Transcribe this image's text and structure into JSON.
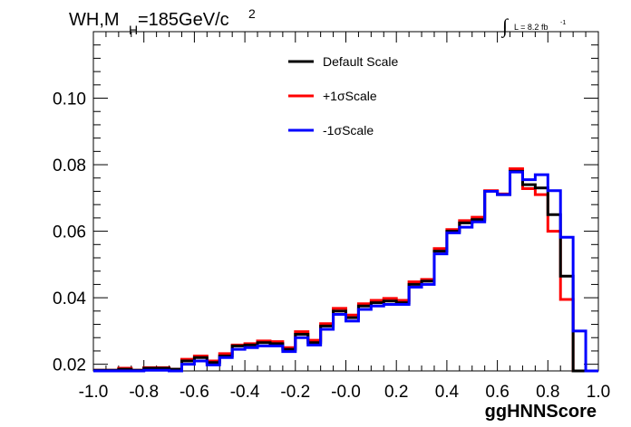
{
  "chart_data": {
    "type": "line",
    "title": "WH,M",
    "title_subscript": "H",
    "title_mass": "=185GeV/c",
    "title_superscript": "2",
    "lumi": {
      "integral_symbol": "∫",
      "text": "L = 8.2 fb",
      "superscript": "-1"
    },
    "xlabel": "ggHNNScore",
    "ylabel": "",
    "xlim": [
      -1.0,
      1.0
    ],
    "ylim": [
      0.018,
      0.12
    ],
    "x_ticks": [
      -1.0,
      -0.8,
      -0.6,
      -0.4,
      -0.2,
      0.0,
      0.2,
      0.4,
      0.6,
      0.8,
      1.0
    ],
    "x_tick_labels": [
      "-1.0",
      "-0.8",
      "-0.6",
      "-0.4",
      "-0.2",
      "-0.0",
      "0.2",
      "0.4",
      "0.6",
      "0.8",
      "1.0"
    ],
    "y_ticks": [
      0.02,
      0.04,
      0.06,
      0.08,
      0.1
    ],
    "y_tick_labels": [
      "0.02",
      "0.04",
      "0.06",
      "0.08",
      "0.10"
    ],
    "grid": false,
    "legend_position": "top-center",
    "bin_edges": [
      -1.0,
      -0.95,
      -0.9,
      -0.85,
      -0.8,
      -0.75,
      -0.7,
      -0.65,
      -0.6,
      -0.55,
      -0.5,
      -0.45,
      -0.4,
      -0.35,
      -0.3,
      -0.25,
      -0.2,
      -0.15,
      -0.1,
      -0.05,
      0.0,
      0.05,
      0.1,
      0.15,
      0.2,
      0.25,
      0.3,
      0.35,
      0.4,
      0.45,
      0.5,
      0.55,
      0.6,
      0.65,
      0.7,
      0.75,
      0.8,
      0.85,
      0.9,
      0.95,
      1.0
    ],
    "series": [
      {
        "name": "Default Scale",
        "color": "#000000",
        "values": [
          0.0182,
          0.0182,
          0.0185,
          0.0182,
          0.0188,
          0.0188,
          0.0185,
          0.021,
          0.022,
          0.0205,
          0.0225,
          0.0255,
          0.0258,
          0.0265,
          0.0262,
          0.0245,
          0.029,
          0.0265,
          0.0315,
          0.036,
          0.034,
          0.0375,
          0.0385,
          0.039,
          0.0385,
          0.044,
          0.045,
          0.054,
          0.06,
          0.0625,
          0.0635,
          0.072,
          0.071,
          0.078,
          0.074,
          0.073,
          0.065,
          0.0465,
          0.018,
          0.018
        ]
      },
      {
        "name": "+1σScale",
        "color": "#ff0000",
        "values": [
          0.0182,
          0.0182,
          0.0188,
          0.0182,
          0.019,
          0.019,
          0.0185,
          0.0215,
          0.0225,
          0.021,
          0.0232,
          0.0258,
          0.0262,
          0.027,
          0.0268,
          0.025,
          0.0298,
          0.0272,
          0.0322,
          0.0368,
          0.0348,
          0.0382,
          0.0392,
          0.0398,
          0.0392,
          0.0448,
          0.0455,
          0.0548,
          0.0605,
          0.0632,
          0.0642,
          0.0722,
          0.0712,
          0.0788,
          0.0728,
          0.071,
          0.06,
          0.0395,
          0.018,
          0.018
        ]
      },
      {
        "name": "-1σScale",
        "color": "#0000ff",
        "values": [
          0.018,
          0.018,
          0.018,
          0.0178,
          0.0182,
          0.0182,
          0.018,
          0.02,
          0.021,
          0.0198,
          0.022,
          0.0245,
          0.025,
          0.0255,
          0.0255,
          0.0238,
          0.028,
          0.0258,
          0.0305,
          0.035,
          0.033,
          0.0365,
          0.0375,
          0.038,
          0.038,
          0.0432,
          0.044,
          0.0532,
          0.0595,
          0.0612,
          0.0628,
          0.072,
          0.071,
          0.0778,
          0.0755,
          0.077,
          0.0722,
          0.0582,
          0.03,
          0.018
        ]
      }
    ]
  }
}
